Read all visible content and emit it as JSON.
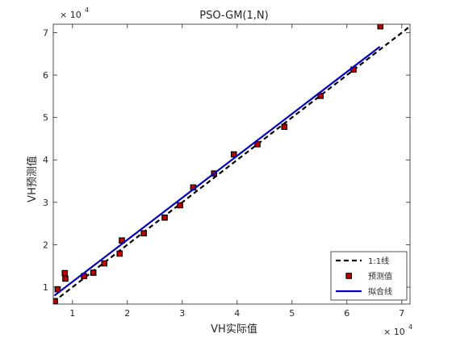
{
  "chart_data": {
    "type": "scatter",
    "title": "PSO-GM(1,N)",
    "xlabel": "VH实际值",
    "ylabel": "VH预测值",
    "x_exponent_label": "× 10",
    "y_exponent_label": "× 10",
    "exponent": "4",
    "xlim": [
      0.65,
      7.15
    ],
    "ylim": [
      0.6,
      7.2
    ],
    "x_ticks": [
      1,
      2,
      3,
      4,
      5,
      6,
      7
    ],
    "y_ticks": [
      1,
      2,
      3,
      4,
      5,
      6,
      7
    ],
    "grid": false,
    "legend_position": "bottom-right",
    "series": [
      {
        "name": "1:1线",
        "kind": "dashed-line",
        "color": "#000000",
        "points": [
          [
            0.65,
            0.65
          ],
          [
            7.15,
            7.15
          ]
        ]
      },
      {
        "name": "预测值",
        "kind": "markers",
        "marker_face": "#c00000",
        "marker_edge": "#000000",
        "points": [
          [
            0.68,
            0.67
          ],
          [
            0.73,
            0.95
          ],
          [
            0.86,
            1.33
          ],
          [
            0.87,
            1.2
          ],
          [
            1.21,
            1.26
          ],
          [
            1.38,
            1.34
          ],
          [
            1.58,
            1.56
          ],
          [
            1.86,
            1.79
          ],
          [
            1.9,
            2.1
          ],
          [
            2.3,
            2.27
          ],
          [
            2.68,
            2.64
          ],
          [
            2.96,
            2.93
          ],
          [
            3.2,
            3.35
          ],
          [
            3.58,
            3.68
          ],
          [
            3.94,
            4.13
          ],
          [
            4.37,
            4.37
          ],
          [
            4.86,
            4.78
          ],
          [
            5.52,
            5.51
          ],
          [
            6.12,
            6.13
          ],
          [
            6.61,
            7.15
          ]
        ]
      },
      {
        "name": "拟合线",
        "kind": "solid-line",
        "color": "#0000c0",
        "points": [
          [
            0.67,
            0.8
          ],
          [
            6.6,
            6.67
          ]
        ]
      }
    ]
  }
}
